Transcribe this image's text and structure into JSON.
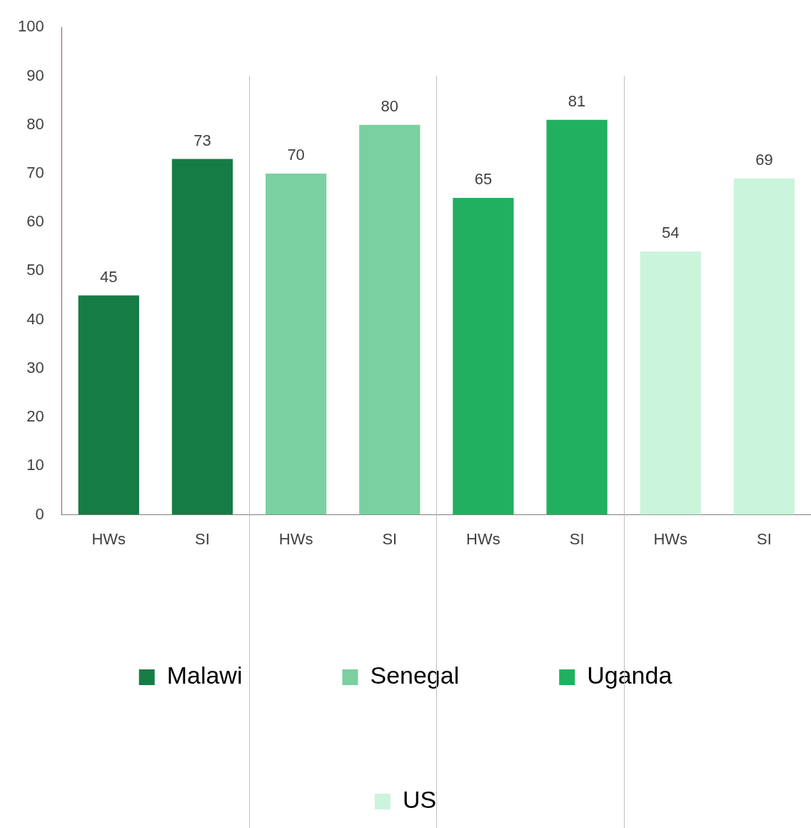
{
  "chart_data": {
    "type": "bar",
    "stacked": true,
    "categories": [
      "HWs",
      "SI",
      "HWs",
      "SI",
      "HWs",
      "SI",
      "HWs",
      "SI"
    ],
    "series": [
      {
        "name": "Malawi",
        "color": "#167c45",
        "values": [
          45,
          73,
          null,
          null,
          null,
          null,
          null,
          null
        ]
      },
      {
        "name": "Senegal",
        "color": "#7ad0a0",
        "values": [
          null,
          null,
          70,
          80,
          null,
          null,
          null,
          null
        ]
      },
      {
        "name": "Uganda",
        "color": "#21b05f",
        "values": [
          null,
          null,
          null,
          null,
          65,
          81,
          null,
          null
        ]
      },
      {
        "name": "US",
        "color": "#cbf4dc",
        "values": [
          null,
          null,
          null,
          null,
          null,
          null,
          54,
          69
        ]
      }
    ],
    "ylim": [
      0,
      100
    ],
    "yticks": [
      0,
      10,
      20,
      30,
      40,
      50,
      60,
      70,
      80,
      90,
      100
    ],
    "grid": false,
    "legend": "bottom",
    "data_labels": true
  }
}
